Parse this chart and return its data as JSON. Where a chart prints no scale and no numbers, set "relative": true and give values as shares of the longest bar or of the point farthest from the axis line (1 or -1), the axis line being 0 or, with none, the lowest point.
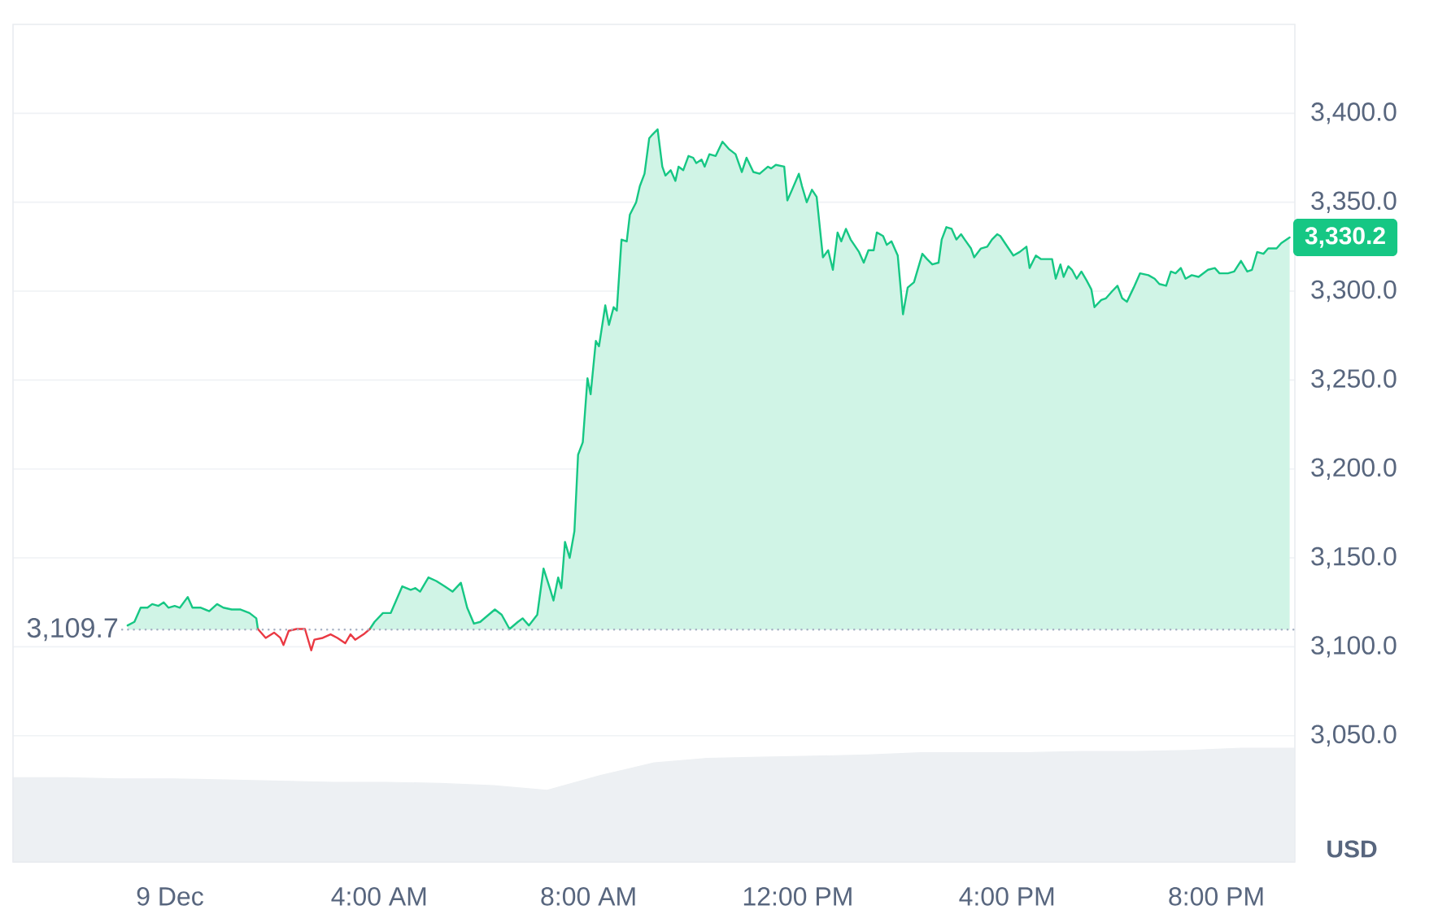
{
  "chart_data": [
    {
      "type": "area",
      "series": [
        {
          "color": "#16c784",
          "x": [
            -0.81,
            -0.68,
            -0.56,
            -0.43,
            -0.34,
            -0.22,
            -0.12,
            -0.03,
            0.09,
            0.19,
            0.34,
            0.43,
            0.59,
            0.75,
            0.9,
            1.02,
            1.18,
            1.34,
            1.52,
            1.65,
            1.68,
            2.7,
            3.82,
            3.91,
            4.07,
            4.22,
            4.44,
            4.6,
            4.69,
            4.78,
            4.94,
            5.09,
            5.25,
            5.4,
            5.56,
            5.68,
            5.81,
            5.93,
            6.09,
            6.21,
            6.34,
            6.49,
            6.65,
            6.74,
            6.86,
            7.02,
            7.14,
            7.27,
            7.33,
            7.42,
            7.48,
            7.55,
            7.64,
            7.73,
            7.8,
            7.89,
            7.98,
            8.04,
            8.14,
            8.2,
            8.32,
            8.39,
            8.48,
            8.54,
            8.63,
            8.73,
            8.79,
            8.91,
            8.98,
            9.07,
            9.16,
            9.22,
            9.32,
            9.41,
            9.47,
            9.57,
            9.66,
            9.72,
            9.81,
            9.91,
            10.0,
            10.06,
            10.16,
            10.22,
            10.31,
            10.43,
            10.56,
            10.68,
            10.81,
            10.93,
            11.02,
            11.15,
            11.27,
            11.43,
            11.49,
            11.58,
            11.74,
            11.8,
            11.89,
            12.02,
            12.08,
            12.17,
            12.27,
            12.36,
            12.48,
            12.58,
            12.67,
            12.76,
            12.83,
            12.92,
            13.01,
            13.17,
            13.26,
            13.35,
            13.45,
            13.51,
            13.63,
            13.7,
            13.79,
            13.91,
            14.01,
            14.1,
            14.22,
            14.38,
            14.47,
            14.57,
            14.69,
            14.75,
            14.84,
            14.94,
            15.03,
            15.12,
            15.19,
            15.31,
            15.37,
            15.5,
            15.62,
            15.71,
            15.81,
            15.87,
            15.96,
            16.12,
            16.24,
            16.37,
            16.43,
            16.55,
            16.65,
            16.74,
            16.86,
            16.93,
            17.02,
            17.08,
            17.17,
            17.24,
            17.33,
            17.42,
            17.52,
            17.61,
            17.67,
            17.8,
            17.89,
            18.01,
            18.11,
            18.2,
            18.29,
            18.42,
            18.54,
            18.7,
            18.82,
            18.91,
            19.04,
            19.13,
            19.22,
            19.32,
            19.41,
            19.53,
            19.66,
            19.75,
            19.84,
            19.97,
            20.06,
            20.22,
            20.34,
            20.47,
            20.59,
            20.68,
            20.78,
            20.9,
            20.99,
            21.15,
            21.24,
            21.4
          ],
          "values": [
            3112,
            3114,
            3122,
            3122,
            3124,
            3123,
            3125,
            3122,
            3123,
            3122,
            3128,
            3122,
            3122,
            3120,
            3124,
            3122,
            3121,
            3121,
            3119,
            3116,
            3110,
            null,
            3110,
            3114,
            3119,
            3119,
            3134,
            3132,
            3133,
            3131,
            3139,
            3137,
            3134,
            3131,
            3136,
            3122,
            3113,
            3114,
            3118,
            3121,
            3118,
            3110,
            3114,
            3116,
            3112,
            3118,
            3144,
            3132,
            3126,
            3139,
            3133,
            3159,
            3150,
            3165,
            3208,
            3215,
            3251,
            3242,
            3272,
            3269,
            3292,
            3281,
            3291,
            3289,
            3329,
            3328,
            3343,
            3350,
            3359,
            3366,
            3386,
            3388,
            3391,
            3370,
            3365,
            3368,
            3362,
            3370,
            3368,
            3376,
            3375,
            3372,
            3374,
            3370,
            3377,
            3376,
            3384,
            3380,
            3377,
            3367,
            3375,
            3367,
            3366,
            3370,
            3369,
            3371,
            3370,
            3351,
            3357,
            3366,
            3359,
            3350,
            3357,
            3353,
            3319,
            3323,
            3312,
            3333,
            3328,
            3335,
            3329,
            3322,
            3316,
            3323,
            3323,
            3333,
            3331,
            3326,
            3328,
            3320,
            3287,
            3302,
            3305,
            3321,
            3318,
            3315,
            3316,
            3329,
            3336,
            3335,
            3329,
            3332,
            3329,
            3324,
            3319,
            3324,
            3325,
            3329,
            3332,
            3331,
            3327,
            3320,
            3322,
            3325,
            3313,
            3320,
            3318,
            3318,
            3318,
            3307,
            3315,
            3308,
            3314,
            3312,
            3307,
            3311,
            3306,
            3301,
            3291,
            3295,
            3296,
            3300,
            3303,
            3296,
            3294,
            3302,
            3310,
            3309,
            3307,
            3304,
            3303,
            3311,
            3310,
            3313,
            3307,
            3309,
            3308,
            3310,
            3312,
            3313,
            3310,
            3310,
            3311,
            3317,
            3311,
            3312,
            3322,
            3321,
            3324,
            3324,
            3327,
            3330.2
          ]
        },
        {
          "type": "line",
          "color": "#ea3943",
          "x": [
            1.68,
            1.83,
            1.99,
            2.11,
            2.17,
            2.27,
            2.42,
            2.58,
            2.7,
            2.76,
            2.92,
            3.07,
            3.2,
            3.35,
            3.45,
            3.54,
            3.7,
            3.82
          ],
          "values": [
            3110,
            3105,
            3108,
            3105,
            3101,
            3109,
            3110,
            3110,
            3098,
            3104,
            3105,
            3107,
            3105,
            3102,
            3107,
            3104,
            3107,
            3110
          ]
        }
      ],
      "xlim": [
        -3,
        21.5
      ],
      "ylim": [
        2979,
        3450
      ],
      "xticks": [
        {
          "value": 0,
          "label": "9 Dec"
        },
        {
          "value": 4,
          "label": "4:00 AM"
        },
        {
          "value": 8,
          "label": "8:00 AM"
        },
        {
          "value": 12,
          "label": "12:00 PM"
        },
        {
          "value": 16,
          "label": "4:00 PM"
        },
        {
          "value": 20,
          "label": "8:00 PM"
        }
      ],
      "yticks": [
        {
          "value": 3050,
          "label": "3,050.0"
        },
        {
          "value": 3100,
          "label": "3,100.0"
        },
        {
          "value": 3150,
          "label": "3,150.0"
        },
        {
          "value": 3200,
          "label": "3,200.0"
        },
        {
          "value": 3250,
          "label": "3,250.0"
        },
        {
          "value": 3300,
          "label": "3,300.0"
        },
        {
          "value": 3350,
          "label": "3,350.0"
        },
        {
          "value": 3400,
          "label": "3,400.0"
        }
      ],
      "grid": "y",
      "ylabel": "USD",
      "ref_lines": [
        {
          "axis": "y",
          "value": 3109.7,
          "label": "3,109.7",
          "line_style": "dotted",
          "color": "#a6b0c3"
        }
      ],
      "annotations": [
        {
          "text": "3,330.2",
          "x": 21.4,
          "y": 3330.2
        }
      ]
    },
    {
      "type": "area",
      "relative": true,
      "color": "#edf0f3",
      "categories": [
        null,
        null,
        null,
        null,
        null,
        null,
        null,
        null,
        null,
        null,
        null,
        null,
        null,
        null,
        null,
        null,
        null,
        null,
        null,
        null,
        null,
        null,
        null,
        null,
        null
      ],
      "values": [
        0.74,
        0.74,
        0.73,
        0.73,
        0.72,
        0.71,
        0.7,
        0.7,
        0.69,
        0.67,
        0.63,
        0.76,
        0.87,
        0.91,
        0.92,
        0.93,
        0.94,
        0.96,
        0.96,
        0.96,
        0.97,
        0.97,
        0.98,
        1,
        1
      ]
    }
  ]
}
